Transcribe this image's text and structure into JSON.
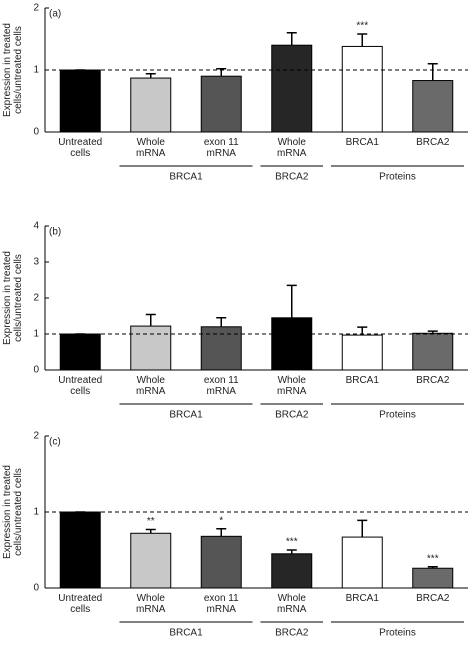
{
  "chart_data": [
    {
      "type": "bar",
      "label": "(a)",
      "ylabel": "Expression in treated cells/untreated cells",
      "categories": [
        "Untreated cells",
        "Whole mRNA",
        "exon 11 mRNA",
        "Whole mRNA",
        "BRCA1",
        "BRCA2"
      ],
      "values": [
        1,
        0.87,
        0.9,
        1.4,
        1.38,
        0.83
      ],
      "errors": [
        0,
        0.07,
        0.12,
        0.2,
        0.2,
        0.27
      ],
      "significance": [
        null,
        null,
        null,
        null,
        "***",
        null
      ],
      "colors": [
        "#000000",
        "#c8c8c8",
        "#555555",
        "#262626",
        "#ffffff",
        "#6a6a6a"
      ],
      "groups": [
        {
          "label": "BRCA1",
          "span": [
            1,
            2
          ]
        },
        {
          "label": "BRCA2",
          "span": [
            3,
            3
          ]
        },
        {
          "label": "Proteins",
          "span": [
            4,
            5
          ]
        }
      ],
      "reference_line": 1,
      "ylim": [
        0,
        2
      ],
      "yticks": [
        0,
        1,
        2
      ]
    },
    {
      "type": "bar",
      "label": "(b)",
      "ylabel": "Expression in treated cells/untreated cells",
      "categories": [
        "Untreated cells",
        "Whole mRNA",
        "exon 11 mRNA",
        "Whole mRNA",
        "BRCA1",
        "BRCA2"
      ],
      "values": [
        1,
        1.22,
        1.2,
        1.45,
        0.97,
        1.02
      ],
      "errors": [
        0,
        0.32,
        0.25,
        0.9,
        0.22,
        0.06
      ],
      "significance": [
        null,
        null,
        null,
        null,
        null,
        null
      ],
      "colors": [
        "#000000",
        "#c8c8c8",
        "#555555",
        "#000000",
        "#ffffff",
        "#6a6a6a"
      ],
      "groups": [
        {
          "label": "BRCA1",
          "span": [
            1,
            2
          ]
        },
        {
          "label": "BRCA2",
          "span": [
            3,
            3
          ]
        },
        {
          "label": "Proteins",
          "span": [
            4,
            5
          ]
        }
      ],
      "reference_line": 1,
      "ylim": [
        0,
        4
      ],
      "yticks": [
        0,
        1,
        2,
        3,
        4
      ]
    },
    {
      "type": "bar",
      "label": "(c)",
      "ylabel": "Expression in treated cells/untreated cells",
      "categories": [
        "Untreated cells",
        "Whole mRNA",
        "exon 11 mRNA",
        "Whole mRNA",
        "BRCA1",
        "BRCA2"
      ],
      "values": [
        1,
        0.72,
        0.68,
        0.45,
        0.67,
        0.26
      ],
      "errors": [
        0,
        0.05,
        0.1,
        0.05,
        0.22,
        0.02
      ],
      "significance": [
        null,
        "**",
        "*",
        "***",
        null,
        "***"
      ],
      "colors": [
        "#000000",
        "#c8c8c8",
        "#555555",
        "#262626",
        "#ffffff",
        "#6a6a6a"
      ],
      "groups": [
        {
          "label": "BRCA1",
          "span": [
            1,
            2
          ]
        },
        {
          "label": "BRCA2",
          "span": [
            3,
            3
          ]
        },
        {
          "label": "Proteins",
          "span": [
            4,
            5
          ]
        }
      ],
      "reference_line": 1,
      "ylim": [
        0,
        2
      ],
      "yticks": [
        0,
        1,
        2
      ]
    }
  ]
}
